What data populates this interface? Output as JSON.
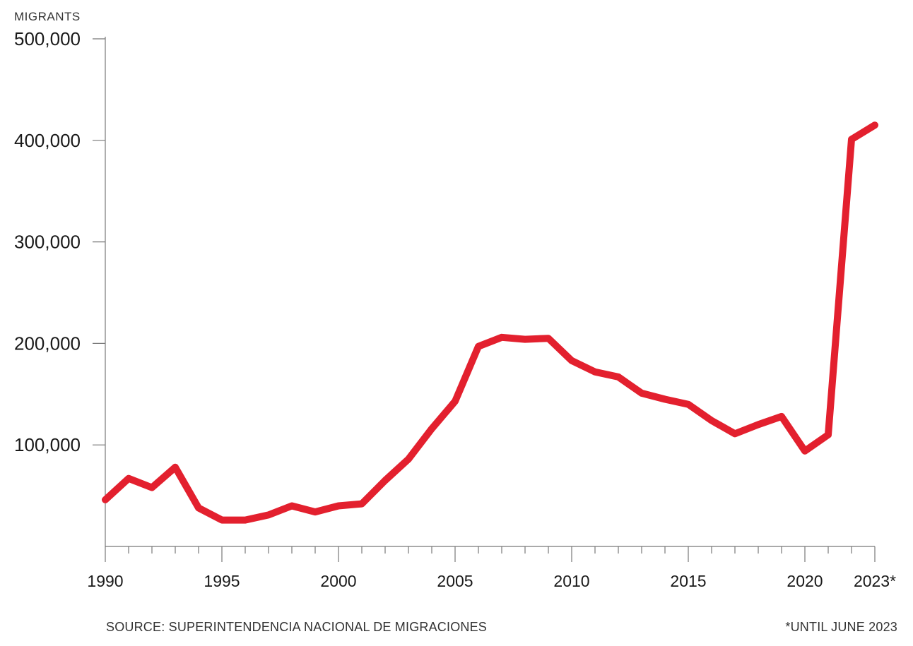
{
  "chart_data": {
    "type": "line",
    "ylabel": "MIGRANTS",
    "ylim": [
      0,
      500000
    ],
    "yticks": [
      100000,
      200000,
      300000,
      400000,
      500000
    ],
    "ytick_labels": [
      "100,000",
      "200,000",
      "300,000",
      "400,000",
      "500,000"
    ],
    "xlim": [
      1990,
      2023
    ],
    "xticks": [
      1990,
      1995,
      2000,
      2005,
      2010,
      2015,
      2020,
      2023
    ],
    "xtick_labels": [
      "1990",
      "1995",
      "2000",
      "2005",
      "2010",
      "2015",
      "2020",
      "2023*"
    ],
    "grid": false,
    "series": [
      {
        "color": "#e3202e",
        "x": [
          1990,
          1991,
          1992,
          1993,
          1994,
          1995,
          1996,
          1997,
          1998,
          1999,
          2000,
          2001,
          2002,
          2003,
          2004,
          2005,
          2006,
          2007,
          2008,
          2009,
          2010,
          2011,
          2012,
          2013,
          2014,
          2015,
          2016,
          2017,
          2018,
          2019,
          2020,
          2021,
          2022,
          2023
        ],
        "values": [
          46000,
          67000,
          58000,
          78000,
          38000,
          26000,
          26000,
          31000,
          40000,
          34000,
          40000,
          42000,
          65000,
          86000,
          116000,
          143000,
          197000,
          206000,
          204000,
          205000,
          183000,
          172000,
          167000,
          151000,
          145000,
          140000,
          124000,
          111000,
          120000,
          128000,
          94000,
          110000,
          401000,
          415000
        ]
      }
    ],
    "source": "SOURCE: SUPERINTENDENCIA NACIONAL DE MIGRACIONES",
    "note": "*UNTIL JUNE 2023"
  }
}
